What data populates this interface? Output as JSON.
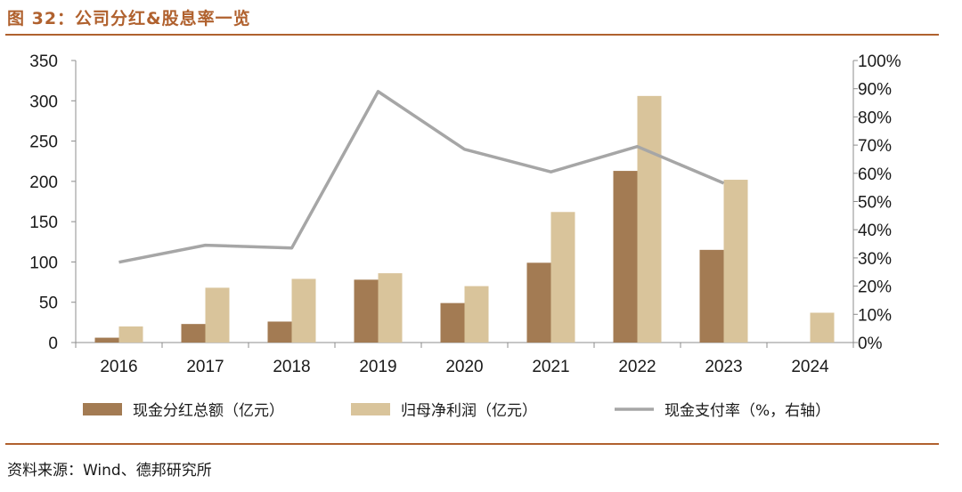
{
  "figure": {
    "title": "图 32：公司分红&股息率一览",
    "source": "资料来源：Wind、德邦研究所"
  },
  "colors": {
    "accent": "#b0612e",
    "dividend": "#a37b53",
    "net_profit": "#d9c49b",
    "payout": "#a6a6a6",
    "axis": "#8c8c8c"
  },
  "chart_data": {
    "type": "bar",
    "categories": [
      "2016",
      "2017",
      "2018",
      "2019",
      "2020",
      "2021",
      "2022",
      "2023",
      "2024"
    ],
    "series": [
      {
        "name": "现金分红总额（亿元）",
        "type": "bar",
        "axis": "left",
        "values": [
          6,
          23,
          26,
          78,
          49,
          99,
          213,
          115,
          null
        ]
      },
      {
        "name": "归母净利润（亿元）",
        "type": "bar",
        "axis": "left",
        "values": [
          20,
          68,
          79,
          86,
          70,
          162,
          306,
          202,
          37
        ]
      },
      {
        "name": "现金支付率（%，右轴）",
        "type": "line",
        "axis": "right",
        "values": [
          28.5,
          34.5,
          33.5,
          89,
          68.5,
          60.5,
          69.5,
          56.5,
          null
        ]
      }
    ],
    "left_axis": {
      "ylim": [
        0,
        350
      ],
      "ticks": [
        "0",
        "50",
        "100",
        "150",
        "200",
        "250",
        "300",
        "350"
      ]
    },
    "right_axis": {
      "ylim": [
        0,
        100
      ],
      "ticks": [
        "0%",
        "10%",
        "20%",
        "30%",
        "40%",
        "50%",
        "60%",
        "70%",
        "80%",
        "90%",
        "100%"
      ]
    },
    "legend": "bottom",
    "grid": false
  }
}
